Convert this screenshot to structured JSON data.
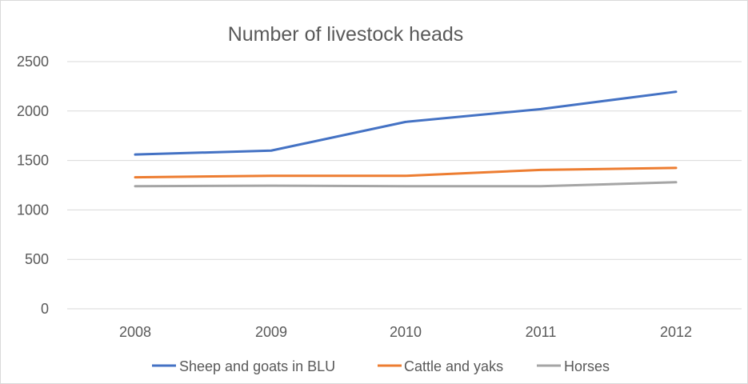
{
  "chart_data": {
    "type": "line",
    "title": "Number of livestock heads",
    "categories": [
      "2008",
      "2009",
      "2010",
      "2011",
      "2012"
    ],
    "y_ticks": [
      "0",
      "500",
      "1000",
      "1500",
      "2000",
      "2500"
    ],
    "ylim": [
      0,
      2500
    ],
    "grid": true,
    "legend_position": "bottom",
    "series": [
      {
        "name": "Sheep and goats in BLU",
        "color": "#4472c4",
        "values": [
          1560,
          1600,
          1890,
          2020,
          2195
        ]
      },
      {
        "name": "Cattle and yaks",
        "color": "#ed7d31",
        "values": [
          1330,
          1345,
          1345,
          1405,
          1425
        ]
      },
      {
        "name": "Horses",
        "color": "#a5a5a5",
        "values": [
          1240,
          1245,
          1240,
          1240,
          1280
        ]
      }
    ],
    "gridline_color": "#d9d9d9"
  }
}
